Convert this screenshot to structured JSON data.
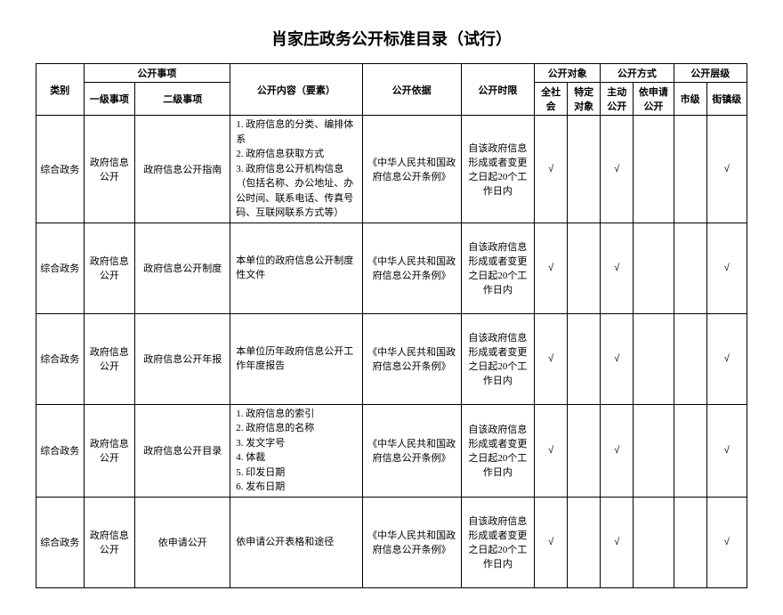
{
  "title": "肖家庄政务公开标准目录（试行）",
  "title_fontsize": 18,
  "headers": {
    "category": "类别",
    "matter": "公开事项",
    "level1": "一级事项",
    "level2": "二级事项",
    "content": "公开内容（要素）",
    "basis": "公开依据",
    "timing": "公开时限",
    "target": "公开对象",
    "target_all": "全社会",
    "target_specific": "特定对象",
    "method": "公开方式",
    "method_active": "主动公开",
    "method_request": "依申请公开",
    "level": "公开层级",
    "level_city": "市级",
    "level_town": "街镇级"
  },
  "rows": [
    {
      "category": "综合政务",
      "level1": "政府信息公开",
      "level2": "政府信息公开指南",
      "content": "1. 政府信息的分类、编排体系\n2. 政府信息获取方式\n3. 政府信息公开机构信息（包括名称、办公地址、办公时间、联系电话、传真号码、互联网联系方式等）",
      "basis": "《中华人民共和国政府信息公开条例》",
      "timing": "自该政府信息形成或者变更之日起20个工作日内",
      "target_all": "√",
      "target_specific": "",
      "method_active": "√",
      "method_request": "",
      "level_city": "",
      "level_town": "√"
    },
    {
      "category": "综合政务",
      "level1": "政府信息公开",
      "level2": "政府信息公开制度",
      "content": "本单位的政府信息公开制度性文件",
      "basis": "《中华人民共和国政府信息公开条例》",
      "timing": "自该政府信息形成或者变更之日起20个工作日内",
      "target_all": "√",
      "target_specific": "",
      "method_active": "√",
      "method_request": "",
      "level_city": "",
      "level_town": "√"
    },
    {
      "category": "综合政务",
      "level1": "政府信息公开",
      "level2": "政府信息公开年报",
      "content": "本单位历年政府信息公开工作年度报告",
      "basis": "《中华人民共和国政府信息公开条例》",
      "timing": "自该政府信息形成或者变更之日起20个工作日内",
      "target_all": "√",
      "target_specific": "",
      "method_active": "√",
      "method_request": "",
      "level_city": "",
      "level_town": "√"
    },
    {
      "category": "综合政务",
      "level1": "政府信息公开",
      "level2": "政府信息公开目录",
      "content": "1. 政府信息的索引\n2. 政府信息的名称\n3. 发文字号\n4. 体裁\n5. 印发日期\n6. 发布日期",
      "basis": "《中华人民共和国政府信息公开条例》",
      "timing": "自该政府信息形成或者变更之日起20个工作日内",
      "target_all": "√",
      "target_specific": "",
      "method_active": "√",
      "method_request": "",
      "level_city": "",
      "level_town": "√"
    },
    {
      "category": "综合政务",
      "level1": "政府信息公开",
      "level2": "依申请公开",
      "content": "依申请公开表格和途径",
      "basis": "《中华人民共和国政府信息公开条例》",
      "timing": "自该政府信息形成或者变更之日起20个工作日内",
      "target_all": "√",
      "target_specific": "",
      "method_active": "√",
      "method_request": "",
      "level_city": "",
      "level_town": "√"
    }
  ],
  "colors": {
    "background": "#ffffff",
    "border": "#000000",
    "text": "#000000"
  }
}
